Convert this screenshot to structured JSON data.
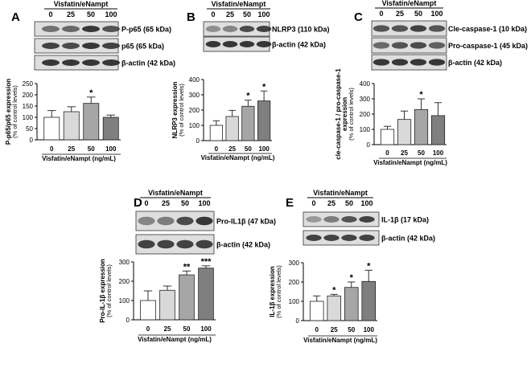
{
  "colors": {
    "bars": [
      "#ffffff",
      "#d9d9d9",
      "#a6a6a6",
      "#7f7f7f"
    ],
    "axis": "#000000",
    "blot_band": "#1a1a1a",
    "blot_bg": "#dedede"
  },
  "blots": [
    {
      "header": "Visfatin/eNampt",
      "lanes": [
        "0",
        "25",
        "50",
        "100"
      ],
      "strips": [
        {
          "label": "P-p65 (65 kDa)",
          "intensity": [
            0.55,
            0.6,
            0.85,
            0.7
          ]
        },
        {
          "label": "p65 (65 kDa)",
          "intensity": [
            0.8,
            0.75,
            0.85,
            0.8
          ]
        },
        {
          "label": "β-actin (42 kDa)",
          "intensity": [
            0.85,
            0.85,
            0.85,
            0.85
          ]
        }
      ]
    },
    {
      "header": "Visfatin/eNampt",
      "lanes": [
        "0",
        "25",
        "50",
        "100"
      ],
      "strips": [
        {
          "label": "NLRP3 (110 kDa)",
          "intensity": [
            0.4,
            0.45,
            0.75,
            0.8
          ]
        },
        {
          "label": "β-actin (42 kDa)",
          "intensity": [
            0.85,
            0.85,
            0.85,
            0.85
          ]
        }
      ]
    },
    {
      "header": "Visfatin/eNampt",
      "lanes": [
        "0",
        "25",
        "50",
        "100"
      ],
      "strips": [
        {
          "label": "Cle-caspase-1 (10 kDa)",
          "intensity": [
            0.7,
            0.7,
            0.8,
            0.7
          ]
        },
        {
          "label": "Pro-caspase-1 (45 kDa)",
          "intensity": [
            0.6,
            0.7,
            0.75,
            0.65
          ]
        },
        {
          "label": "β-actin (42 kDa)",
          "intensity": [
            0.85,
            0.85,
            0.85,
            0.85
          ]
        }
      ]
    },
    {
      "header": "Visfatin/eNampt",
      "lanes": [
        "0",
        "25",
        "50",
        "100"
      ],
      "strips": [
        {
          "label": "Pro-IL1β (47 kDa)",
          "intensity": [
            0.45,
            0.5,
            0.75,
            0.85
          ]
        },
        {
          "label": "β-actin (42 kDa)",
          "intensity": [
            0.8,
            0.8,
            0.8,
            0.8
          ]
        }
      ]
    },
    {
      "header": "Visfatin/eNampt",
      "lanes": [
        "0",
        "25",
        "50",
        "100"
      ],
      "strips": [
        {
          "label": "IL-1β (17 kDa)",
          "intensity": [
            0.35,
            0.5,
            0.7,
            0.8
          ]
        },
        {
          "label": "β-actin (42 kDa)",
          "intensity": [
            0.8,
            0.8,
            0.8,
            0.8
          ]
        }
      ]
    }
  ],
  "chart_data": [
    {
      "panel": "A",
      "type": "bar",
      "categories": [
        "0",
        "25",
        "50",
        "100"
      ],
      "values": [
        100,
        125,
        162,
        100
      ],
      "errors": [
        30,
        22,
        28,
        10
      ],
      "significance": [
        "",
        "",
        "*",
        ""
      ],
      "ylabel": "P-p65/p65 expression",
      "ylabel2": "(% of control levels)",
      "xlabel": "Visfatin/eNampt (ng/mL)",
      "ylim": [
        0,
        250
      ],
      "yticks": [
        0,
        50,
        100,
        150,
        200,
        250
      ]
    },
    {
      "panel": "B",
      "type": "bar",
      "categories": [
        "0",
        "25",
        "50",
        "100"
      ],
      "values": [
        100,
        158,
        225,
        260
      ],
      "errors": [
        30,
        40,
        40,
        65
      ],
      "significance": [
        "",
        "",
        "*",
        "*"
      ],
      "ylabel": "NLRP3 expression",
      "ylabel2": "(% of control levels)",
      "xlabel": "Visfatin/eNampt (ng/mL)",
      "ylim": [
        0,
        400
      ],
      "yticks": [
        0,
        100,
        200,
        300,
        400
      ]
    },
    {
      "panel": "C",
      "type": "bar",
      "categories": [
        "0",
        "25",
        "50",
        "100"
      ],
      "values": [
        100,
        165,
        230,
        190
      ],
      "errors": [
        20,
        55,
        70,
        85
      ],
      "significance": [
        "",
        "",
        "*",
        ""
      ],
      "ylabel": "cle-caspase-1 / pro-caspase-1",
      "ylabel2": "expression",
      "ylabel3": "(% of control levels)",
      "xlabel": "Visfatin/eNampt (ng/mL)",
      "ylim": [
        0,
        400
      ],
      "yticks": [
        0,
        100,
        200,
        300,
        400
      ]
    },
    {
      "panel": "D",
      "type": "bar",
      "categories": [
        "0",
        "25",
        "50",
        "100"
      ],
      "values": [
        100,
        153,
        233,
        268
      ],
      "errors": [
        50,
        22,
        20,
        12
      ],
      "significance": [
        "",
        "",
        "**",
        "***"
      ],
      "ylabel": "Pro-IL-1β  expression",
      "ylabel2": "(% of control levels)",
      "xlabel": "Visfatin/eNampt (ng/mL)",
      "ylim": [
        0,
        300
      ],
      "yticks": [
        0,
        100,
        200,
        300
      ]
    },
    {
      "panel": "E",
      "type": "bar",
      "categories": [
        "0",
        "25",
        "50",
        "100"
      ],
      "values": [
        100,
        128,
        172,
        203
      ],
      "errors": [
        28,
        8,
        28,
        58
      ],
      "significance": [
        "",
        "*",
        "*",
        "*"
      ],
      "ylabel": "IL-1β expression",
      "ylabel2": "(% of control levels)",
      "xlabel": "Visfatin/eNampt (ng/mL)",
      "ylim": [
        0,
        300
      ],
      "yticks": [
        0,
        100,
        200,
        300
      ]
    }
  ],
  "panel_letters": [
    "A",
    "B",
    "C",
    "D",
    "E"
  ]
}
